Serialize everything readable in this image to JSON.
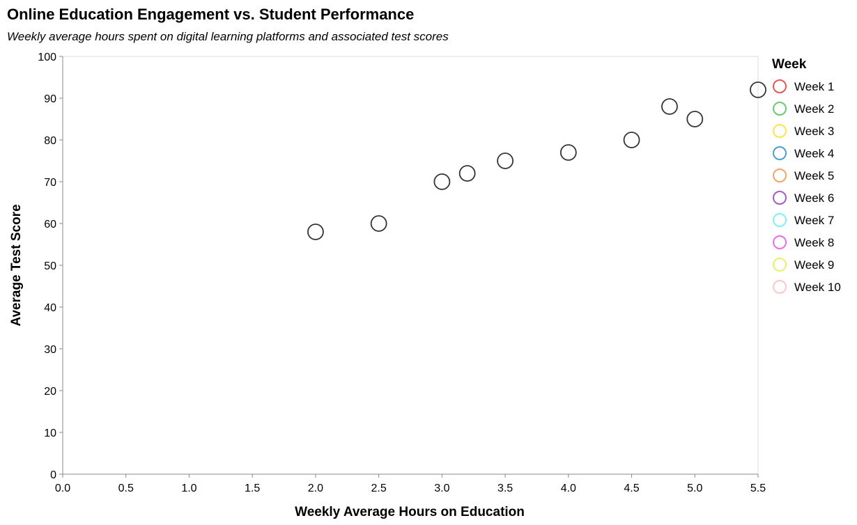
{
  "chart_data": {
    "type": "scatter",
    "title": "Online Education Engagement vs. Student Performance",
    "subtitle": "Weekly average hours spent on digital learning platforms and associated test scores",
    "xlabel": "Weekly Average Hours on Education",
    "ylabel": "Average Test Score",
    "xlim": [
      0,
      5.5
    ],
    "ylim": [
      0,
      100
    ],
    "x_ticks": [
      "0.0",
      "0.5",
      "1.0",
      "1.5",
      "2.0",
      "2.5",
      "3.0",
      "3.5",
      "4.0",
      "4.5",
      "5.0",
      "5.5"
    ],
    "y_ticks": [
      "0",
      "10",
      "20",
      "30",
      "40",
      "50",
      "60",
      "70",
      "80",
      "90",
      "100"
    ],
    "grid": false,
    "legend": {
      "title": "Week",
      "placement": "right",
      "entries": [
        {
          "label": "Week 1",
          "color": "#e45756"
        },
        {
          "label": "Week 2",
          "color": "#6cc96c"
        },
        {
          "label": "Week 3",
          "color": "#ffe34d"
        },
        {
          "label": "Week 4",
          "color": "#4c9fcf"
        },
        {
          "label": "Week 5",
          "color": "#f2a46b"
        },
        {
          "label": "Week 6",
          "color": "#a55bbf"
        },
        {
          "label": "Week 7",
          "color": "#7ff0f4"
        },
        {
          "label": "Week 8",
          "color": "#e66ee8"
        },
        {
          "label": "Week 9",
          "color": "#e7ef6b"
        },
        {
          "label": "Week 10",
          "color": "#ffc7c9"
        }
      ]
    },
    "point_color": "#333333",
    "points": [
      {
        "x": 2.0,
        "y": 58
      },
      {
        "x": 2.5,
        "y": 60
      },
      {
        "x": 3.0,
        "y": 70
      },
      {
        "x": 3.2,
        "y": 72
      },
      {
        "x": 3.5,
        "y": 75
      },
      {
        "x": 4.0,
        "y": 77
      },
      {
        "x": 4.5,
        "y": 80
      },
      {
        "x": 4.8,
        "y": 88
      },
      {
        "x": 5.0,
        "y": 85
      },
      {
        "x": 5.5,
        "y": 92
      }
    ]
  }
}
